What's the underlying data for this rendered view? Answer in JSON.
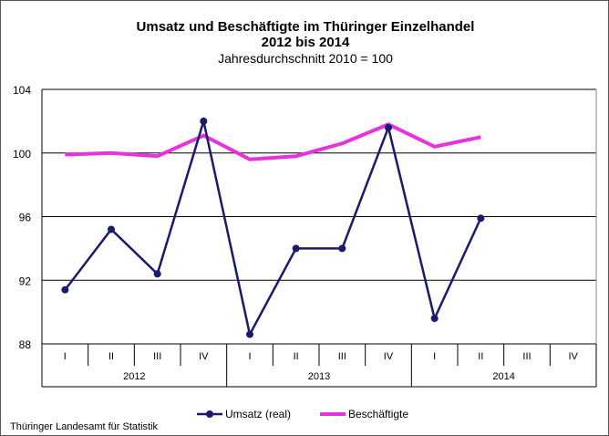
{
  "chart_data": {
    "type": "line",
    "title": "Umsatz und Beschäftigte im Thüringer Einzelhandel",
    "subtitle": "2012 bis 2014",
    "subtitle2": "Jahresdurchschnitt 2010 = 100",
    "categories": [
      "I",
      "II",
      "III",
      "IV",
      "I",
      "II",
      "III",
      "IV",
      "I",
      "II",
      "III",
      "IV"
    ],
    "years": [
      "2012",
      "2013",
      "2014"
    ],
    "ylim": [
      88,
      104
    ],
    "yticks": [
      "88",
      "92",
      "96",
      "100",
      "104"
    ],
    "grid": true,
    "legend_position": "bottom",
    "series": [
      {
        "name": "Umsatz (real)",
        "color": "#1a1a6e",
        "markers": true,
        "values": [
          91.4,
          95.2,
          92.4,
          102.0,
          88.6,
          94.0,
          94.0,
          101.6,
          89.6,
          95.9,
          null,
          null
        ]
      },
      {
        "name": "Beschäftigte",
        "color": "#e832e0",
        "markers": false,
        "values": [
          99.9,
          100.0,
          99.8,
          101.1,
          99.6,
          99.8,
          100.6,
          101.8,
          100.4,
          101.0,
          null,
          null
        ]
      }
    ]
  },
  "source": "Thüringer Landesamt für Statistik"
}
